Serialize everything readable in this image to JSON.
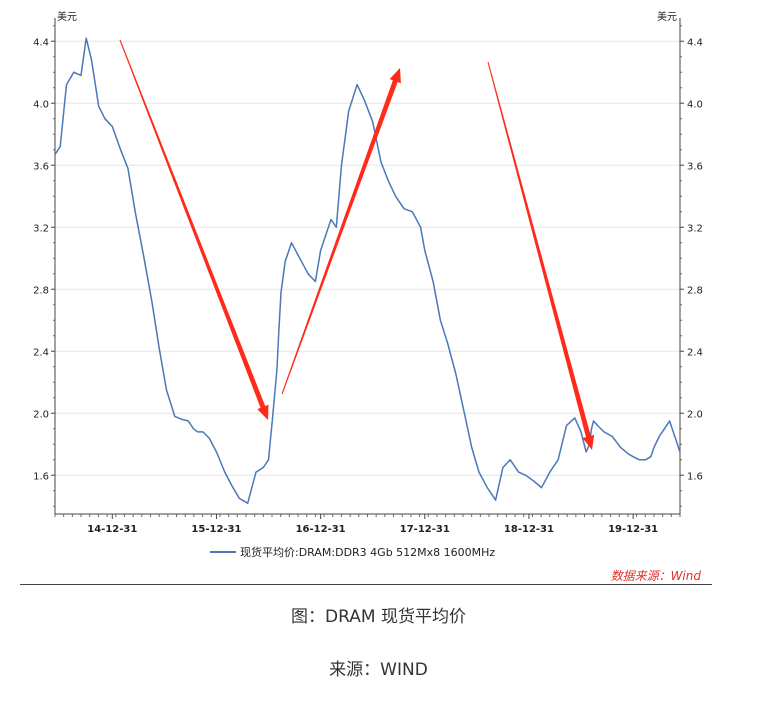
{
  "chart_data": {
    "type": "line",
    "unit_left": "美元",
    "unit_right": "美元",
    "y_ticks": [
      1.6,
      2.0,
      2.4,
      2.8,
      3.2,
      3.6,
      4.0,
      4.4
    ],
    "y_tick_labels": [
      "1.6",
      "2.0",
      "2.4",
      "2.8",
      "3.2",
      "3.6",
      "4.0",
      "4.4"
    ],
    "ylim": [
      1.35,
      4.55
    ],
    "x_tick_labels": [
      "14-12-31",
      "15-12-31",
      "16-12-31",
      "17-12-31",
      "18-12-31",
      "19-12-31"
    ],
    "x_tick_positions": [
      2014.0,
      2015.0,
      2016.0,
      2017.0,
      2018.0,
      2019.0
    ],
    "xlim": [
      2013.45,
      2019.45
    ],
    "grid": "horizontal",
    "legend": "bottom",
    "line_color": "#4a78b8",
    "arrow_color": "#ff2a1a",
    "series": [
      {
        "name": "现货平均价:DRAM:DDR3 4Gb 512Mx8 1600MHz",
        "x": [
          2013.45,
          2013.5,
          2013.56,
          2013.63,
          2013.7,
          2013.75,
          2013.8,
          2013.87,
          2013.93,
          2014.0,
          2014.08,
          2014.15,
          2014.22,
          2014.3,
          2014.38,
          2014.45,
          2014.52,
          2014.6,
          2014.67,
          2014.73,
          2014.78,
          2014.82,
          2014.87,
          2014.93,
          2015.0,
          2015.08,
          2015.15,
          2015.22,
          2015.3,
          2015.38,
          2015.45,
          2015.5,
          2015.54,
          2015.58,
          2015.6,
          2015.62,
          2015.66,
          2015.72,
          2015.8,
          2015.88,
          2015.95,
          2016.0,
          2016.05,
          2016.1,
          2016.15,
          2016.2,
          2016.27,
          2016.35,
          2016.42,
          2016.5,
          2016.58,
          2016.65,
          2016.72,
          2016.8,
          2016.88,
          2016.92,
          2016.96,
          2017.0,
          2017.08,
          2017.15,
          2017.22,
          2017.3,
          2017.38,
          2017.45,
          2017.52,
          2017.6,
          2017.68,
          2017.75,
          2017.82,
          2017.9,
          2017.97,
          2018.05,
          2018.12,
          2018.2,
          2018.28,
          2018.36,
          2018.44,
          2018.5,
          2018.55,
          2018.58,
          2018.6,
          2018.62,
          2018.66,
          2018.72,
          2018.8,
          2018.88,
          2018.95,
          2019.0,
          2019.06,
          2019.12,
          2019.17,
          2019.2,
          2019.25,
          2019.3,
          2019.35,
          2019.4,
          2019.45
        ],
        "values": [
          3.67,
          3.72,
          4.12,
          4.2,
          4.18,
          4.42,
          4.28,
          3.98,
          3.9,
          3.85,
          3.7,
          3.58,
          3.3,
          3.02,
          2.72,
          2.42,
          2.15,
          1.98,
          1.96,
          1.95,
          1.9,
          1.88,
          1.88,
          1.84,
          1.75,
          1.62,
          1.53,
          1.45,
          1.42,
          1.62,
          1.65,
          1.7,
          1.98,
          2.28,
          2.55,
          2.78,
          2.98,
          3.1,
          3.0,
          2.9,
          2.85,
          3.05,
          3.15,
          3.25,
          3.2,
          3.6,
          3.95,
          4.12,
          4.02,
          3.88,
          3.62,
          3.5,
          3.4,
          3.32,
          3.3,
          3.25,
          3.2,
          3.05,
          2.85,
          2.6,
          2.45,
          2.25,
          2.0,
          1.78,
          1.62,
          1.52,
          1.44,
          1.65,
          1.7,
          1.62,
          1.6,
          1.56,
          1.52,
          1.62,
          1.7,
          1.92,
          1.97,
          1.88,
          1.75,
          1.8,
          1.9,
          1.95,
          1.92,
          1.88,
          1.85,
          1.78,
          1.74,
          1.72,
          1.7,
          1.7,
          1.72,
          1.78,
          1.85,
          1.9,
          1.95,
          1.85,
          1.75
        ]
      }
    ]
  },
  "source_note": "数据来源：Wind",
  "caption": "图：DRAM  现货平均价",
  "source": "来源：WIND"
}
